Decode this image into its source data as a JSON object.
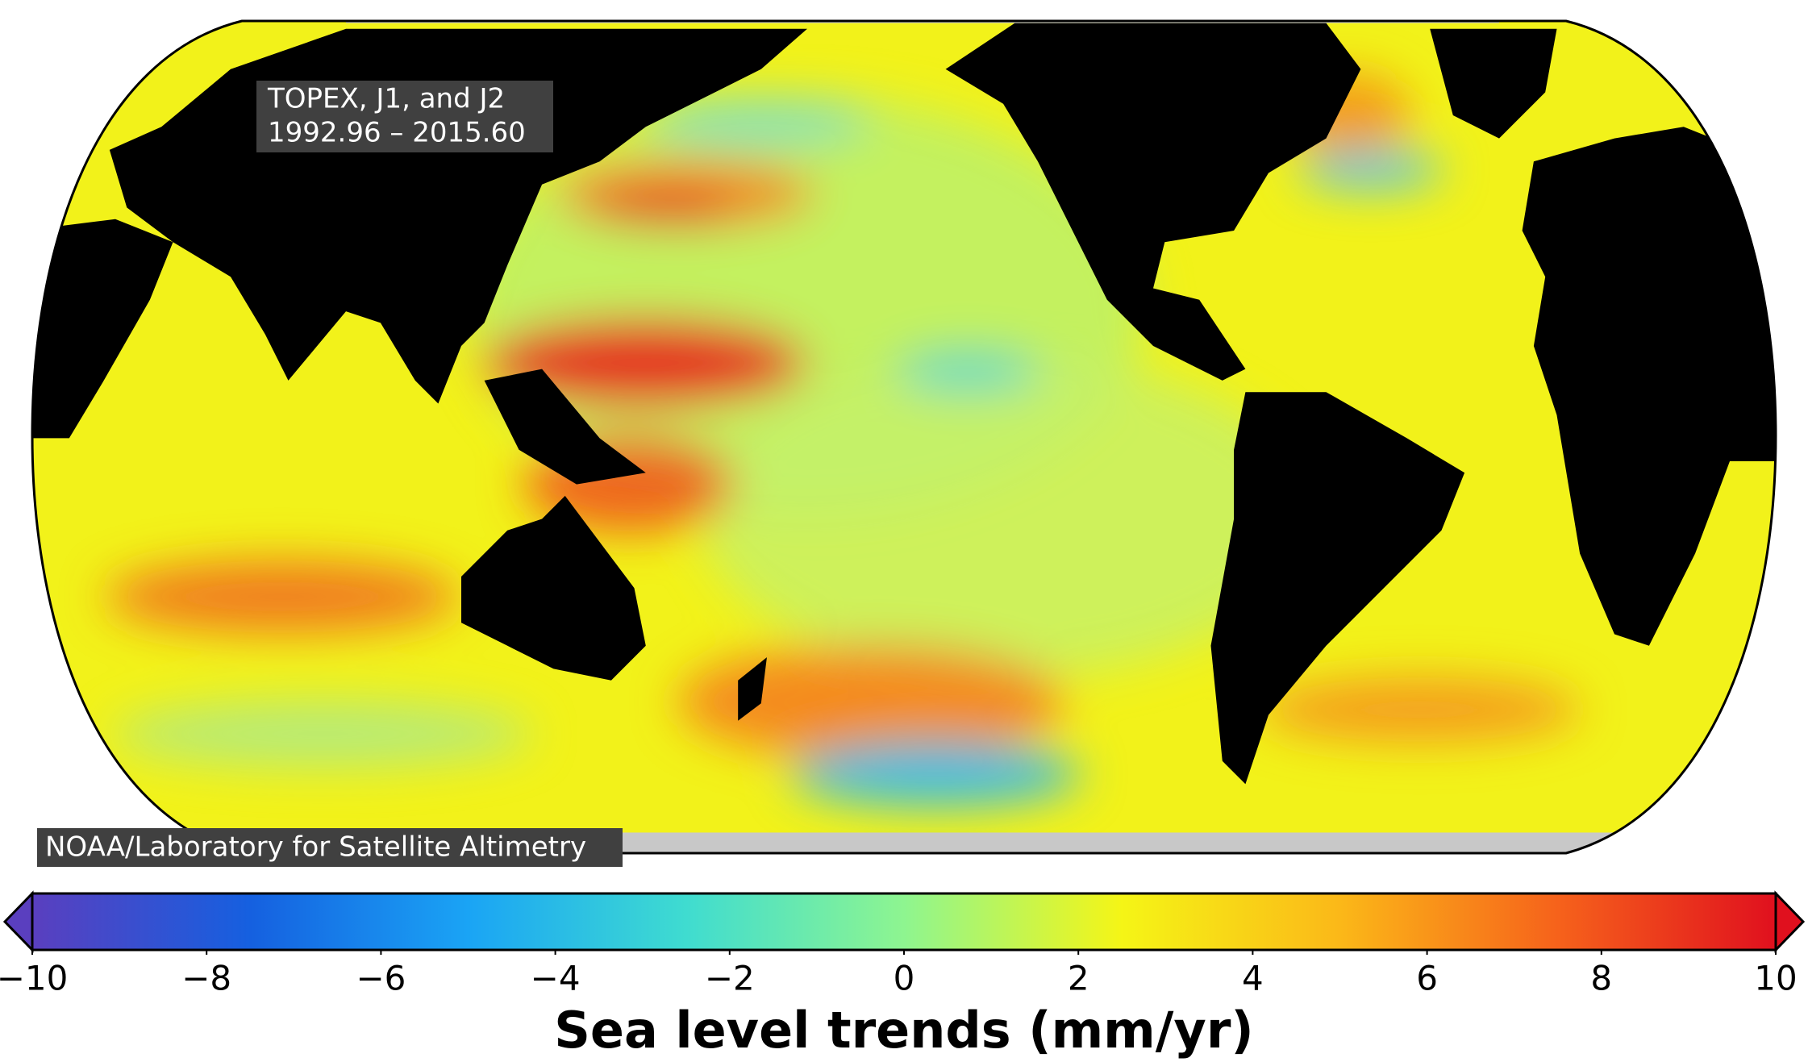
{
  "map": {
    "annotation": [
      "TOPEX, J1, and J2",
      "1992.96 – 2015.60"
    ],
    "credit": "NOAA/Laboratory for Satellite Altimetry"
  },
  "colorbar": {
    "label": "Sea level trends (mm/yr)",
    "range": [
      -10,
      10
    ],
    "ticks": [
      {
        "value": -10,
        "label": "−10"
      },
      {
        "value": -8,
        "label": "−8"
      },
      {
        "value": -6,
        "label": "−6"
      },
      {
        "value": -4,
        "label": "−4"
      },
      {
        "value": -2,
        "label": "−2"
      },
      0,
      2,
      4,
      6,
      8,
      10
    ],
    "colors": [
      "#5a3fbf",
      "#1560e0",
      "#1aa4f5",
      "#3fdcd0",
      "#8ef590",
      "#f5f516",
      "#fbb818",
      "#f6621b",
      "#e0101e"
    ]
  }
}
